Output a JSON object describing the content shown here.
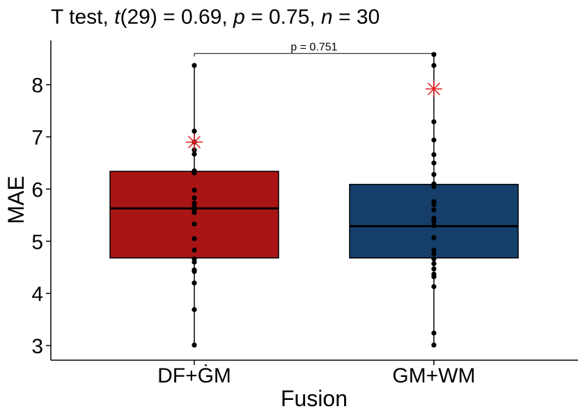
{
  "title": {
    "test": "T test, ",
    "stat_sym": "t",
    "df": "(29) = 0.69, ",
    "p_sym": "p",
    "p_val": " = 0.75, ",
    "n_sym": "n",
    "n_val": " = 30"
  },
  "chart_data": {
    "type": "box",
    "xlabel": "Fusion",
    "ylabel": "MAE",
    "ylim": [
      2.72,
      8.85
    ],
    "yticks": [
      3,
      4,
      5,
      6,
      7,
      8
    ],
    "categories": [
      "DF+ĠM",
      "GM+WM"
    ],
    "boxes": [
      {
        "name": "DF+ĠM",
        "color": "#A91515",
        "q1": 4.68,
        "median": 5.63,
        "q3": 6.34,
        "whisker_low": 3.01,
        "whisker_high": 8.37,
        "mean": 6.9
      },
      {
        "name": "GM+WM",
        "color": "#153E6B",
        "q1": 4.68,
        "median": 5.29,
        "q3": 6.09,
        "whisker_low": 3.01,
        "whisker_high": 8.58,
        "mean": 7.92
      }
    ],
    "points": [
      [
        8.37,
        7.11,
        6.9,
        6.75,
        6.67,
        6.35,
        6.31,
        5.98,
        5.83,
        5.73,
        5.66,
        5.6,
        5.55,
        5.33,
        5.05,
        4.83,
        4.66,
        4.6,
        4.45,
        4.42,
        4.2,
        3.69,
        3.01
      ],
      [
        8.58,
        8.37,
        7.29,
        6.94,
        6.66,
        6.5,
        6.28,
        6.1,
        6.05,
        5.76,
        5.7,
        5.6,
        5.44,
        5.38,
        5.3,
        5.07,
        4.83,
        4.76,
        4.66,
        4.57,
        4.47,
        4.37,
        4.32,
        4.13,
        3.24,
        3.01
      ]
    ],
    "comparison": {
      "label": "p = 0.751",
      "y": 8.6
    },
    "mean_marker_color": "#E41A1C",
    "grid": false
  }
}
